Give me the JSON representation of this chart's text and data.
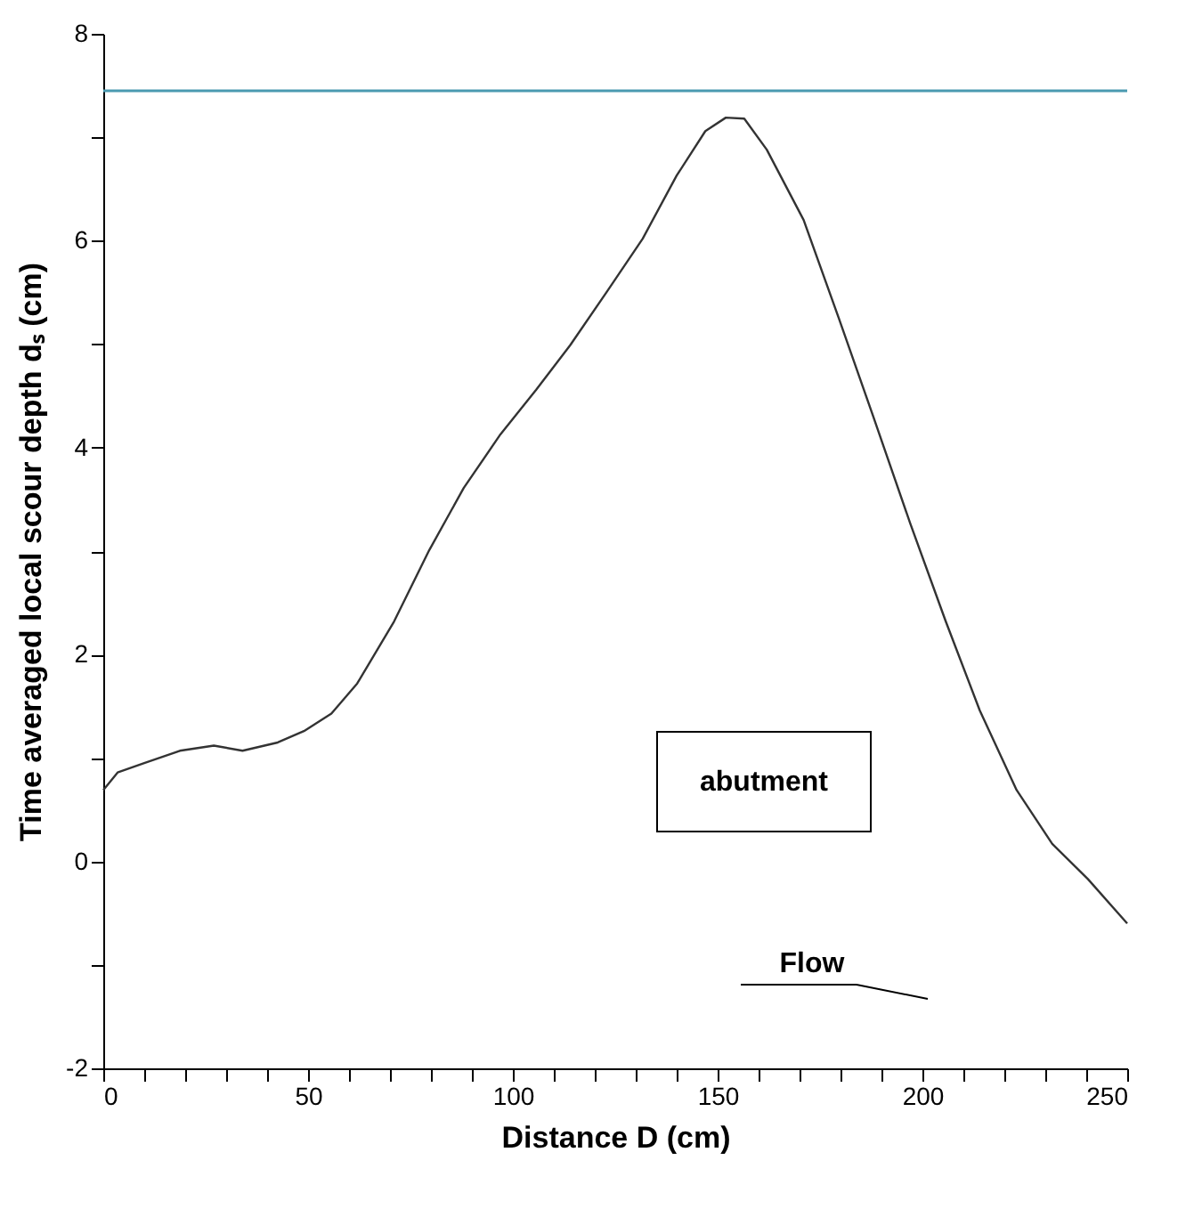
{
  "chart_data": {
    "type": "line",
    "xlabel": "Distance D  (cm)",
    "ylabel": "Time averaged local scour depth dₛ (cm)",
    "x": [
      0,
      3.5,
      10,
      18.7,
      27,
      34,
      42.6,
      49,
      55.7,
      62,
      71,
      79.6,
      88,
      97,
      105.7,
      114,
      123,
      131.7,
      140,
      147,
      152,
      156.5,
      162,
      171,
      179.6,
      188,
      197,
      205.7,
      214,
      223,
      231.7,
      240.4,
      250
    ],
    "series": [
      {
        "color": "#333333",
        "values": [
          0.69,
          0.86,
          0.95,
          1.07,
          1.12,
          1.07,
          1.15,
          1.26,
          1.43,
          1.72,
          2.32,
          3.01,
          3.61,
          4.13,
          4.56,
          4.99,
          5.51,
          6.02,
          6.63,
          7.06,
          7.19,
          7.18,
          6.88,
          6.2,
          5.25,
          4.3,
          3.27,
          2.32,
          1.46,
          0.69,
          0.17,
          -0.17,
          -0.6
        ]
      }
    ],
    "xlim": [
      0,
      250
    ],
    "ylim": [
      -2,
      8
    ],
    "xticks": [
      0,
      {
        "value": 10,
        "label": null
      },
      {
        "value": 20,
        "label": null
      },
      {
        "value": 30,
        "label": null
      },
      {
        "value": 40,
        "label": null
      },
      50,
      {
        "value": 60,
        "label": null
      },
      {
        "value": 70,
        "label": null
      },
      {
        "value": 80,
        "label": null
      },
      {
        "value": 90,
        "label": null
      },
      100,
      {
        "value": 110,
        "label": null
      },
      {
        "value": 120,
        "label": null
      },
      {
        "value": 130,
        "label": null
      },
      {
        "value": 140,
        "label": null
      },
      150,
      {
        "value": 160,
        "label": null
      },
      {
        "value": 170,
        "label": null
      },
      {
        "value": 180,
        "label": null
      },
      {
        "value": 190,
        "label": null
      },
      200,
      {
        "value": 210,
        "label": null
      },
      {
        "value": 220,
        "label": null
      },
      {
        "value": 230,
        "label": null
      },
      {
        "value": 240,
        "label": null
      },
      250
    ],
    "yticks": [
      -2,
      {
        "value": -1,
        "label": null
      },
      0,
      {
        "value": 1,
        "label": null
      },
      2,
      {
        "value": 3,
        "label": null
      },
      4,
      {
        "value": 5,
        "label": null
      },
      6,
      {
        "value": 7,
        "label": null
      },
      8
    ],
    "ref_lines": [
      {
        "axis": "y",
        "value": 7.45,
        "color": "#4a9ab0"
      }
    ],
    "annotations": [
      "abutment",
      "Flow"
    ],
    "grid": false,
    "marker": "none",
    "line_style": "solid"
  }
}
